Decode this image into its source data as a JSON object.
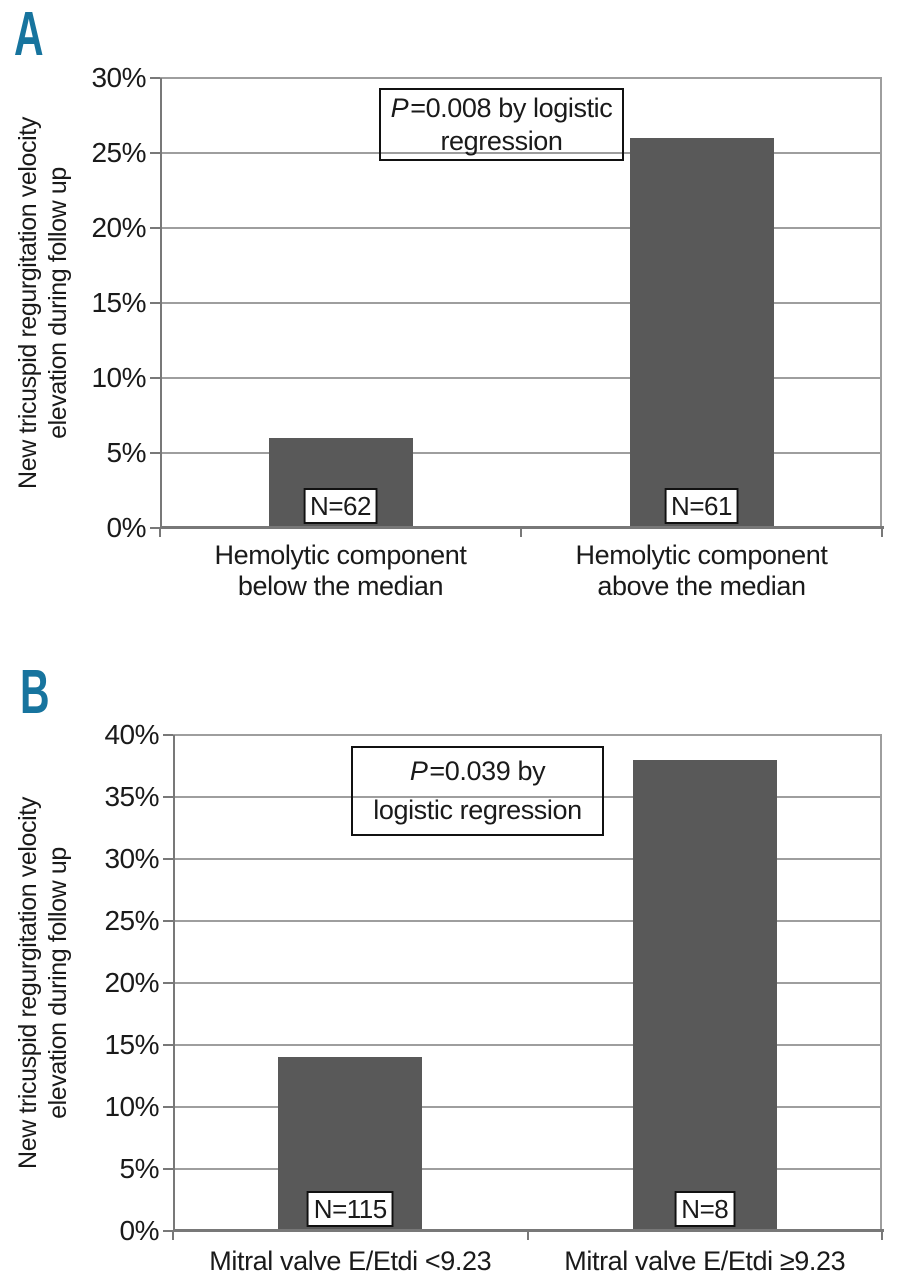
{
  "figure": {
    "background": "#ffffff",
    "panel_label_color": "#17749e",
    "bar_color": "#595959",
    "text_color": "#1a1a1a"
  },
  "chart_data": [
    {
      "type": "bar",
      "panel_label": "A",
      "title": "",
      "xlabel": "",
      "ylabel": "New tricuspid regurgitation velocity elevation during follow up",
      "ylabel_lines": [
        "New tricuspid regurgitation velocity",
        "elevation during follow up"
      ],
      "categories": [
        "Hemolytic component below the median",
        "Hemolytic component above the median"
      ],
      "category_lines": [
        [
          "Hemolytic component",
          "below the median"
        ],
        [
          "Hemolytic component",
          "above the median"
        ]
      ],
      "values": [
        6,
        26
      ],
      "bar_labels": [
        "N=62",
        "N=61"
      ],
      "annotation": "P=0.008 by logistic regression",
      "annotation_lines": [
        "P=0.008 by logistic",
        "regression"
      ],
      "ylim": [
        0,
        30
      ],
      "ytick_step": 5,
      "ytick_labels": [
        "0%",
        "5%",
        "10%",
        "15%",
        "20%",
        "25%",
        "30%"
      ],
      "grid": true,
      "legend": null
    },
    {
      "type": "bar",
      "panel_label": "B",
      "title": "",
      "xlabel": "",
      "ylabel": "New tricuspid regurgitation velocity elevation during follow up",
      "ylabel_lines": [
        "New tricuspid regurgitation velocity",
        "elevation during follow up"
      ],
      "categories": [
        "Mitral valve E/Etdi <9.23",
        "Mitral valve E/Etdi ≥9.23"
      ],
      "category_lines": [
        [
          "Mitral valve E/Etdi <9.23"
        ],
        [
          "Mitral valve E/Etdi ≥9.23"
        ]
      ],
      "values": [
        14,
        38
      ],
      "bar_labels": [
        "N=115",
        "N=8"
      ],
      "annotation": "P=0.039 by logistic regression",
      "annotation_lines": [
        "P=0.039 by",
        "logistic regression"
      ],
      "ylim": [
        0,
        40
      ],
      "ytick_step": 5,
      "ytick_labels": [
        "0%",
        "5%",
        "10%",
        "15%",
        "20%",
        "25%",
        "30%",
        "35%",
        "40%"
      ],
      "grid": true,
      "legend": null
    }
  ]
}
